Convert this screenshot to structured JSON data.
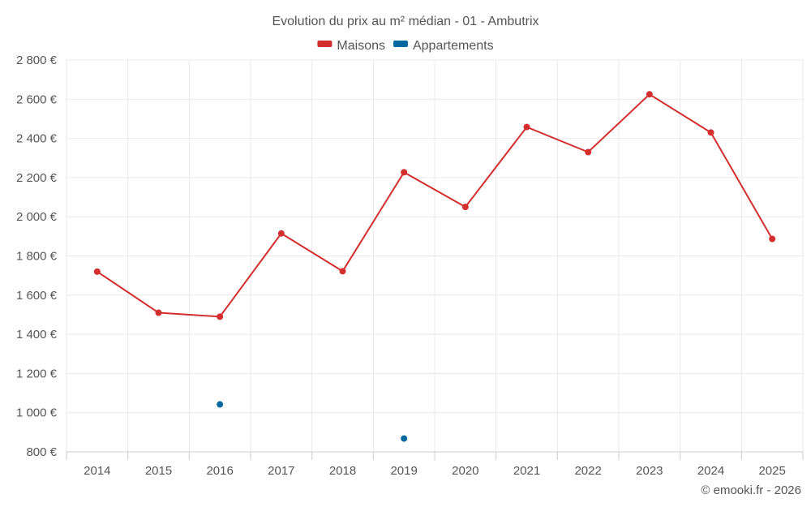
{
  "chart_data": {
    "type": "line",
    "title": "Evolution du prix au m² médian - 01 - Ambutrix",
    "x": [
      "2014",
      "2015",
      "2016",
      "2017",
      "2018",
      "2019",
      "2020",
      "2021",
      "2022",
      "2023",
      "2024",
      "2025"
    ],
    "series": [
      {
        "name": "Maisons",
        "color": "#d32f2f",
        "values": [
          1720,
          1510,
          1490,
          1915,
          1722,
          2227,
          2050,
          2458,
          2330,
          2625,
          2430,
          1887
        ]
      },
      {
        "name": "Appartements",
        "color": "#01699f",
        "values": [
          null,
          null,
          1042,
          null,
          null,
          868,
          null,
          null,
          null,
          null,
          null,
          null
        ]
      }
    ],
    "ylim": [
      800,
      2800
    ],
    "yticks": [
      800,
      1000,
      1200,
      1400,
      1600,
      1800,
      2000,
      2200,
      2400,
      2600,
      2800
    ],
    "ytick_labels": [
      "800 €",
      "1 000 €",
      "1 200 €",
      "1 400 €",
      "1 600 €",
      "1 800 €",
      "2 000 €",
      "2 200 €",
      "2 400 €",
      "2 600 €",
      "2 800 €"
    ],
    "grid": true,
    "legend_position": "top-center"
  },
  "credit": "© emooki.fr - 2026"
}
